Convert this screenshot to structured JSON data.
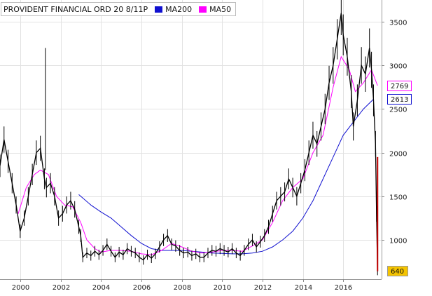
{
  "legend": {
    "title": "PROVIDENT FINANCIAL ORD 20 8/11P",
    "items": [
      {
        "label": "MA200",
        "color": "#1010d0"
      },
      {
        "label": "MA50",
        "color": "#ff00ff"
      }
    ]
  },
  "tags": [
    {
      "value": "2769",
      "y": 2769,
      "border": "#ff00ff",
      "bg": "#ffffff"
    },
    {
      "value": "2613",
      "y": 2613,
      "border": "#1010d0",
      "bg": "#ffffff"
    },
    {
      "value": "640",
      "y": 640,
      "border": "#999999",
      "bg": "#f5c400"
    }
  ],
  "chart_data": {
    "type": "candlestick",
    "title": "PROVIDENT FINANCIAL ORD 20 8/11P",
    "xlabel": "",
    "ylabel": "",
    "xlim": [
      1999.0,
      2017.9
    ],
    "ylim": [
      550,
      3750
    ],
    "x_ticks": [
      "2000",
      "2002",
      "2004",
      "2006",
      "2008",
      "2010",
      "2012",
      "2014",
      "2016"
    ],
    "y_ticks": [
      "1000",
      "1500",
      "2000",
      "2500",
      "3000",
      "3500"
    ],
    "grid": true,
    "legend_position": "top-left",
    "price_color": "#000000",
    "price": [
      [
        1999.0,
        1850
      ],
      [
        1999.2,
        2150
      ],
      [
        1999.4,
        1900
      ],
      [
        1999.6,
        1650
      ],
      [
        1999.8,
        1400
      ],
      [
        2000.0,
        1100
      ],
      [
        2000.2,
        1250
      ],
      [
        2000.4,
        1500
      ],
      [
        2000.6,
        1750
      ],
      [
        2000.8,
        2000
      ],
      [
        2001.0,
        2050
      ],
      [
        2001.2,
        1700
      ],
      [
        2001.3,
        1600
      ],
      [
        2001.5,
        1650
      ],
      [
        2001.7,
        1500
      ],
      [
        2001.9,
        1250
      ],
      [
        2002.1,
        1300
      ],
      [
        2002.3,
        1400
      ],
      [
        2002.5,
        1450
      ],
      [
        2002.7,
        1350
      ],
      [
        2002.9,
        1150
      ],
      [
        2003.0,
        1050
      ],
      [
        2003.1,
        800
      ],
      [
        2003.3,
        850
      ],
      [
        2003.5,
        820
      ],
      [
        2003.7,
        870
      ],
      [
        2003.9,
        830
      ],
      [
        2004.1,
        880
      ],
      [
        2004.3,
        950
      ],
      [
        2004.5,
        870
      ],
      [
        2004.7,
        800
      ],
      [
        2004.9,
        860
      ],
      [
        2005.1,
        830
      ],
      [
        2005.3,
        900
      ],
      [
        2005.5,
        870
      ],
      [
        2005.7,
        850
      ],
      [
        2005.9,
        800
      ],
      [
        2006.1,
        770
      ],
      [
        2006.3,
        830
      ],
      [
        2006.5,
        790
      ],
      [
        2006.7,
        840
      ],
      [
        2006.9,
        920
      ],
      [
        2007.1,
        1000
      ],
      [
        2007.3,
        1050
      ],
      [
        2007.5,
        950
      ],
      [
        2007.7,
        930
      ],
      [
        2007.9,
        880
      ],
      [
        2008.1,
        850
      ],
      [
        2008.3,
        860
      ],
      [
        2008.5,
        820
      ],
      [
        2008.7,
        840
      ],
      [
        2008.9,
        800
      ],
      [
        2009.1,
        800
      ],
      [
        2009.3,
        850
      ],
      [
        2009.5,
        880
      ],
      [
        2009.7,
        870
      ],
      [
        2009.9,
        900
      ],
      [
        2010.1,
        880
      ],
      [
        2010.3,
        860
      ],
      [
        2010.5,
        900
      ],
      [
        2010.7,
        850
      ],
      [
        2010.9,
        820
      ],
      [
        2011.1,
        880
      ],
      [
        2011.3,
        950
      ],
      [
        2011.5,
        1000
      ],
      [
        2011.7,
        920
      ],
      [
        2011.9,
        980
      ],
      [
        2012.1,
        1050
      ],
      [
        2012.3,
        1150
      ],
      [
        2012.5,
        1300
      ],
      [
        2012.7,
        1450
      ],
      [
        2012.9,
        1500
      ],
      [
        2013.1,
        1550
      ],
      [
        2013.3,
        1700
      ],
      [
        2013.5,
        1600
      ],
      [
        2013.7,
        1500
      ],
      [
        2013.9,
        1650
      ],
      [
        2014.1,
        1800
      ],
      [
        2014.3,
        2000
      ],
      [
        2014.5,
        2200
      ],
      [
        2014.7,
        2100
      ],
      [
        2014.9,
        2300
      ],
      [
        2015.1,
        2500
      ],
      [
        2015.3,
        2800
      ],
      [
        2015.5,
        3000
      ],
      [
        2015.7,
        3300
      ],
      [
        2015.9,
        3600
      ],
      [
        2016.0,
        3350
      ],
      [
        2016.2,
        3100
      ],
      [
        2016.4,
        2700
      ],
      [
        2016.5,
        2300
      ],
      [
        2016.7,
        2600
      ],
      [
        2016.9,
        3000
      ],
      [
        2017.1,
        2900
      ],
      [
        2017.3,
        3200
      ],
      [
        2017.4,
        2950
      ],
      [
        2017.5,
        2600
      ],
      [
        2017.6,
        2100
      ],
      [
        2017.65,
        1300
      ],
      [
        2017.7,
        640
      ]
    ],
    "series": [
      {
        "name": "MA200",
        "color": "#1010d0",
        "values": [
          [
            2002.9,
            1520
          ],
          [
            2003.5,
            1400
          ],
          [
            2004.0,
            1320
          ],
          [
            2004.5,
            1250
          ],
          [
            2005.0,
            1150
          ],
          [
            2005.5,
            1050
          ],
          [
            2006.0,
            960
          ],
          [
            2006.5,
            900
          ],
          [
            2007.0,
            880
          ],
          [
            2007.5,
            880
          ],
          [
            2008.0,
            880
          ],
          [
            2008.5,
            870
          ],
          [
            2009.0,
            860
          ],
          [
            2009.5,
            850
          ],
          [
            2010.0,
            845
          ],
          [
            2010.5,
            840
          ],
          [
            2011.0,
            840
          ],
          [
            2011.5,
            850
          ],
          [
            2012.0,
            870
          ],
          [
            2012.5,
            920
          ],
          [
            2013.0,
            1000
          ],
          [
            2013.5,
            1100
          ],
          [
            2014.0,
            1250
          ],
          [
            2014.5,
            1450
          ],
          [
            2015.0,
            1700
          ],
          [
            2015.5,
            1950
          ],
          [
            2016.0,
            2200
          ],
          [
            2016.5,
            2350
          ],
          [
            2017.0,
            2500
          ],
          [
            2017.5,
            2613
          ]
        ]
      },
      {
        "name": "MA50",
        "color": "#ff00ff",
        "values": [
          [
            1999.9,
            1300
          ],
          [
            2000.3,
            1600
          ],
          [
            2000.7,
            1750
          ],
          [
            2001.0,
            1800
          ],
          [
            2001.4,
            1750
          ],
          [
            2001.8,
            1500
          ],
          [
            2002.2,
            1400
          ],
          [
            2002.6,
            1380
          ],
          [
            2003.0,
            1200
          ],
          [
            2003.3,
            1000
          ],
          [
            2003.7,
            900
          ],
          [
            2004.0,
            860
          ],
          [
            2004.5,
            880
          ],
          [
            2005.0,
            880
          ],
          [
            2005.5,
            870
          ],
          [
            2006.0,
            840
          ],
          [
            2006.5,
            830
          ],
          [
            2007.0,
            880
          ],
          [
            2007.5,
            960
          ],
          [
            2008.0,
            920
          ],
          [
            2008.5,
            870
          ],
          [
            2009.0,
            850
          ],
          [
            2009.5,
            860
          ],
          [
            2010.0,
            880
          ],
          [
            2010.5,
            880
          ],
          [
            2011.0,
            870
          ],
          [
            2011.5,
            930
          ],
          [
            2012.0,
            1000
          ],
          [
            2012.5,
            1200
          ],
          [
            2013.0,
            1450
          ],
          [
            2013.5,
            1600
          ],
          [
            2014.0,
            1700
          ],
          [
            2014.5,
            2000
          ],
          [
            2015.0,
            2200
          ],
          [
            2015.5,
            2750
          ],
          [
            2015.9,
            3100
          ],
          [
            2016.3,
            2950
          ],
          [
            2016.6,
            2700
          ],
          [
            2017.0,
            2800
          ],
          [
            2017.4,
            2950
          ],
          [
            2017.7,
            2769
          ]
        ]
      }
    ],
    "spike": {
      "x": 2001.25,
      "high": 3200,
      "low": 1800
    }
  }
}
